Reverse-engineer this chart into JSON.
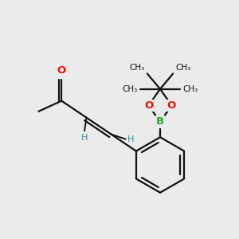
{
  "background_color": "#ebebeb",
  "bond_color": "#111111",
  "O_color": "#ee1100",
  "B_color": "#22aa33",
  "H_color": "#448888",
  "line_width": 1.6,
  "figsize": [
    3.0,
    3.0
  ],
  "dpi": 100,
  "xlim": [
    -2.8,
    2.2
  ],
  "ylim": [
    -2.4,
    2.6
  ]
}
